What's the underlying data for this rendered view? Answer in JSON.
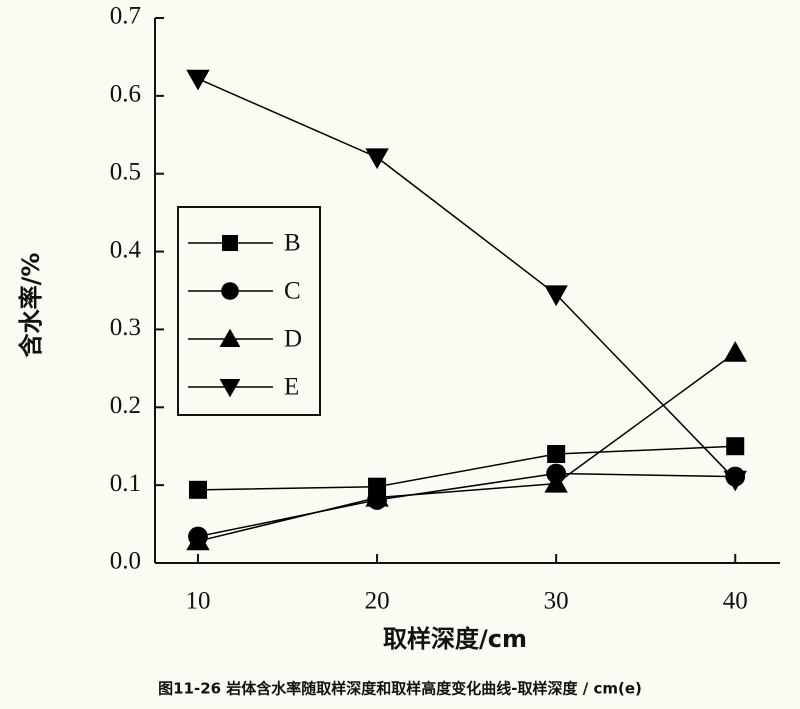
{
  "chart_data": {
    "type": "line",
    "xlabel": "取样深度/cm",
    "ylabel": "含水率/%",
    "caption": "图11-26  岩体含水率随取样深度和取样高度变化曲线-取样深度 / cm(e)",
    "x": [
      10,
      20,
      30,
      40
    ],
    "xlim": [
      7.6,
      42.5
    ],
    "xticks": [
      10,
      20,
      30,
      40
    ],
    "ylim": [
      0,
      0.7
    ],
    "yticks": [
      {
        "value": 0,
        "label": "0.0"
      },
      0.1,
      0.2,
      0.3,
      0.4,
      0.5,
      0.6,
      0.7
    ],
    "legend": "left",
    "series": [
      {
        "name": "B",
        "color": "#000000",
        "marker": "square",
        "values": [
          0.094,
          0.098,
          0.14,
          0.15
        ]
      },
      {
        "name": "C",
        "color": "#000000",
        "marker": "circle",
        "values": [
          0.034,
          0.081,
          0.115,
          0.111
        ]
      },
      {
        "name": "D",
        "color": "#000000",
        "marker": "triangle-up",
        "values": [
          0.028,
          0.084,
          0.102,
          0.27
        ]
      },
      {
        "name": "E",
        "color": "#000000",
        "marker": "triangle-down",
        "values": [
          0.622,
          0.521,
          0.345,
          0.107
        ]
      }
    ]
  }
}
